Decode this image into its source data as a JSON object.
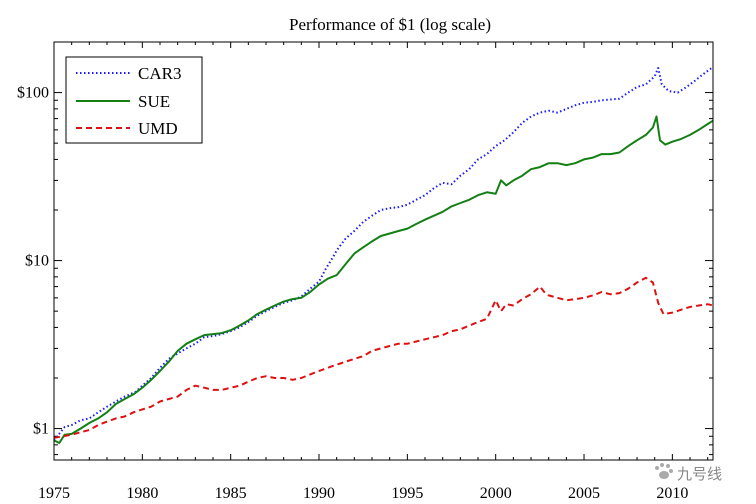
{
  "chart_data": {
    "type": "line",
    "title": "Performance of $1 (log scale)",
    "y_scale": "log",
    "xlim": [
      1975,
      2012.3
    ],
    "ylim": [
      0.65,
      200
    ],
    "grid": false,
    "legend_position": "top-left",
    "x_ticks": [
      1975,
      1980,
      1985,
      1990,
      1995,
      2000,
      2005,
      2010
    ],
    "x_tick_labels": [
      "1975",
      "1980",
      "1985",
      "1990",
      "1995",
      "2000",
      "2005",
      "2010"
    ],
    "y_ticks": [
      1,
      10,
      100
    ],
    "y_tick_labels": [
      "$1",
      "$10",
      "$100"
    ],
    "series": [
      {
        "name": "CAR3",
        "color": "#1a1aff",
        "style": "dotted",
        "points": [
          [
            1975.0,
            0.85
          ],
          [
            1975.6,
            1.02
          ],
          [
            1976.0,
            1.05
          ],
          [
            1976.5,
            1.12
          ],
          [
            1977.0,
            1.15
          ],
          [
            1977.5,
            1.25
          ],
          [
            1978.0,
            1.35
          ],
          [
            1978.5,
            1.45
          ],
          [
            1979.0,
            1.55
          ],
          [
            1979.6,
            1.65
          ],
          [
            1980.0,
            1.8
          ],
          [
            1980.5,
            2.0
          ],
          [
            1981.0,
            2.3
          ],
          [
            1981.5,
            2.6
          ],
          [
            1982.0,
            2.8
          ],
          [
            1982.5,
            3.0
          ],
          [
            1983.0,
            3.2
          ],
          [
            1983.5,
            3.5
          ],
          [
            1984.0,
            3.55
          ],
          [
            1984.5,
            3.65
          ],
          [
            1985.0,
            3.8
          ],
          [
            1985.5,
            4.0
          ],
          [
            1986.0,
            4.3
          ],
          [
            1986.5,
            4.7
          ],
          [
            1987.0,
            5.0
          ],
          [
            1987.5,
            5.3
          ],
          [
            1988.0,
            5.6
          ],
          [
            1988.5,
            5.8
          ],
          [
            1989.0,
            6.1
          ],
          [
            1989.5,
            6.8
          ],
          [
            1990.0,
            7.5
          ],
          [
            1990.4,
            9.0
          ],
          [
            1990.8,
            10.5
          ],
          [
            1991.0,
            11.5
          ],
          [
            1991.5,
            13.5
          ],
          [
            1992.0,
            15.0
          ],
          [
            1992.5,
            17.0
          ],
          [
            1993.0,
            18.5
          ],
          [
            1993.5,
            20.0
          ],
          [
            1994.0,
            20.5
          ],
          [
            1994.5,
            20.8
          ],
          [
            1995.0,
            21.5
          ],
          [
            1995.5,
            23.0
          ],
          [
            1996.0,
            24.5
          ],
          [
            1996.5,
            27.0
          ],
          [
            1997.0,
            29.0
          ],
          [
            1997.5,
            28.5
          ],
          [
            1998.0,
            32.0
          ],
          [
            1998.5,
            35.0
          ],
          [
            1999.0,
            40.0
          ],
          [
            1999.5,
            43.0
          ],
          [
            2000.0,
            48.0
          ],
          [
            2000.5,
            52.0
          ],
          [
            2001.0,
            58.0
          ],
          [
            2001.5,
            66.0
          ],
          [
            2002.0,
            72.0
          ],
          [
            2002.5,
            76.0
          ],
          [
            2003.0,
            78.0
          ],
          [
            2003.5,
            76.0
          ],
          [
            2004.0,
            80.0
          ],
          [
            2004.5,
            84.0
          ],
          [
            2005.0,
            87.0
          ],
          [
            2005.5,
            88.0
          ],
          [
            2006.0,
            90.0
          ],
          [
            2006.5,
            91.0
          ],
          [
            2007.0,
            92.0
          ],
          [
            2007.5,
            100.0
          ],
          [
            2008.0,
            108.0
          ],
          [
            2008.5,
            112.0
          ],
          [
            2009.0,
            125.0
          ],
          [
            2009.2,
            140.0
          ],
          [
            2009.4,
            112.0
          ],
          [
            2009.8,
            102.0
          ],
          [
            2010.3,
            100.0
          ],
          [
            2010.8,
            108.0
          ],
          [
            2011.3,
            118.0
          ],
          [
            2011.8,
            130.0
          ],
          [
            2012.3,
            142.0
          ]
        ]
      },
      {
        "name": "SUE",
        "color": "#138013",
        "style": "solid",
        "points": [
          [
            1975.0,
            0.85
          ],
          [
            1975.3,
            0.82
          ],
          [
            1975.6,
            0.92
          ],
          [
            1976.0,
            0.93
          ],
          [
            1976.5,
            1.0
          ],
          [
            1977.0,
            1.08
          ],
          [
            1977.5,
            1.15
          ],
          [
            1978.0,
            1.25
          ],
          [
            1978.5,
            1.4
          ],
          [
            1979.0,
            1.5
          ],
          [
            1979.5,
            1.6
          ],
          [
            1980.0,
            1.75
          ],
          [
            1980.5,
            1.95
          ],
          [
            1981.0,
            2.2
          ],
          [
            1981.5,
            2.5
          ],
          [
            1982.0,
            2.9
          ],
          [
            1982.5,
            3.2
          ],
          [
            1983.0,
            3.4
          ],
          [
            1983.5,
            3.6
          ],
          [
            1984.0,
            3.65
          ],
          [
            1984.5,
            3.7
          ],
          [
            1985.0,
            3.85
          ],
          [
            1985.5,
            4.1
          ],
          [
            1986.0,
            4.4
          ],
          [
            1986.5,
            4.8
          ],
          [
            1987.0,
            5.1
          ],
          [
            1987.5,
            5.4
          ],
          [
            1988.0,
            5.7
          ],
          [
            1988.5,
            5.9
          ],
          [
            1989.0,
            6.0
          ],
          [
            1989.5,
            6.5
          ],
          [
            1990.0,
            7.2
          ],
          [
            1990.5,
            7.8
          ],
          [
            1991.0,
            8.2
          ],
          [
            1991.5,
            9.5
          ],
          [
            1992.0,
            11.0
          ],
          [
            1992.5,
            12.0
          ],
          [
            1993.0,
            13.0
          ],
          [
            1993.5,
            14.0
          ],
          [
            1994.0,
            14.5
          ],
          [
            1994.5,
            15.0
          ],
          [
            1995.0,
            15.5
          ],
          [
            1995.5,
            16.5
          ],
          [
            1996.0,
            17.5
          ],
          [
            1996.5,
            18.5
          ],
          [
            1997.0,
            19.5
          ],
          [
            1997.5,
            21.0
          ],
          [
            1998.0,
            22.0
          ],
          [
            1998.5,
            23.0
          ],
          [
            1999.0,
            24.5
          ],
          [
            1999.5,
            25.5
          ],
          [
            2000.0,
            25.0
          ],
          [
            2000.3,
            30.0
          ],
          [
            2000.6,
            28.0
          ],
          [
            2001.0,
            30.0
          ],
          [
            2001.5,
            32.0
          ],
          [
            2002.0,
            35.0
          ],
          [
            2002.5,
            36.0
          ],
          [
            2003.0,
            38.0
          ],
          [
            2003.5,
            38.0
          ],
          [
            2004.0,
            37.0
          ],
          [
            2004.5,
            38.0
          ],
          [
            2005.0,
            40.0
          ],
          [
            2005.5,
            41.0
          ],
          [
            2006.0,
            43.0
          ],
          [
            2006.5,
            43.0
          ],
          [
            2007.0,
            44.0
          ],
          [
            2007.5,
            48.0
          ],
          [
            2008.0,
            52.0
          ],
          [
            2008.5,
            56.0
          ],
          [
            2008.9,
            62.0
          ],
          [
            2009.1,
            72.0
          ],
          [
            2009.3,
            52.0
          ],
          [
            2009.6,
            49.0
          ],
          [
            2010.0,
            51.0
          ],
          [
            2010.5,
            53.0
          ],
          [
            2011.0,
            56.0
          ],
          [
            2011.5,
            60.0
          ],
          [
            2012.0,
            65.0
          ],
          [
            2012.3,
            68.0
          ]
        ]
      },
      {
        "name": "UMD",
        "color": "#e01010",
        "style": "dashed",
        "points": [
          [
            1975.0,
            0.88
          ],
          [
            1975.5,
            0.9
          ],
          [
            1976.0,
            0.92
          ],
          [
            1976.5,
            0.95
          ],
          [
            1977.0,
            0.98
          ],
          [
            1977.5,
            1.05
          ],
          [
            1978.0,
            1.1
          ],
          [
            1978.5,
            1.15
          ],
          [
            1979.0,
            1.18
          ],
          [
            1979.5,
            1.25
          ],
          [
            1980.0,
            1.3
          ],
          [
            1980.5,
            1.35
          ],
          [
            1981.0,
            1.45
          ],
          [
            1981.5,
            1.5
          ],
          [
            1982.0,
            1.55
          ],
          [
            1982.5,
            1.7
          ],
          [
            1983.0,
            1.8
          ],
          [
            1983.5,
            1.75
          ],
          [
            1984.0,
            1.7
          ],
          [
            1984.5,
            1.7
          ],
          [
            1985.0,
            1.75
          ],
          [
            1985.5,
            1.8
          ],
          [
            1986.0,
            1.9
          ],
          [
            1986.5,
            2.0
          ],
          [
            1987.0,
            2.05
          ],
          [
            1987.5,
            2.0
          ],
          [
            1988.0,
            2.0
          ],
          [
            1988.5,
            1.95
          ],
          [
            1989.0,
            2.0
          ],
          [
            1989.5,
            2.1
          ],
          [
            1990.0,
            2.2
          ],
          [
            1990.5,
            2.3
          ],
          [
            1991.0,
            2.4
          ],
          [
            1991.5,
            2.5
          ],
          [
            1992.0,
            2.6
          ],
          [
            1992.5,
            2.7
          ],
          [
            1993.0,
            2.9
          ],
          [
            1993.5,
            3.0
          ],
          [
            1994.0,
            3.1
          ],
          [
            1994.5,
            3.2
          ],
          [
            1995.0,
            3.2
          ],
          [
            1995.5,
            3.3
          ],
          [
            1996.0,
            3.4
          ],
          [
            1996.5,
            3.5
          ],
          [
            1997.0,
            3.6
          ],
          [
            1997.5,
            3.8
          ],
          [
            1998.0,
            3.9
          ],
          [
            1998.5,
            4.1
          ],
          [
            1999.0,
            4.3
          ],
          [
            1999.5,
            4.5
          ],
          [
            2000.0,
            5.8
          ],
          [
            2000.3,
            5.0
          ],
          [
            2000.6,
            5.5
          ],
          [
            2001.0,
            5.4
          ],
          [
            2001.5,
            5.9
          ],
          [
            2002.0,
            6.3
          ],
          [
            2002.5,
            7.0
          ],
          [
            2002.8,
            6.4
          ],
          [
            2003.0,
            6.2
          ],
          [
            2003.5,
            6.0
          ],
          [
            2004.0,
            5.8
          ],
          [
            2004.5,
            5.9
          ],
          [
            2005.0,
            6.0
          ],
          [
            2005.5,
            6.2
          ],
          [
            2006.0,
            6.5
          ],
          [
            2006.5,
            6.3
          ],
          [
            2007.0,
            6.4
          ],
          [
            2007.5,
            6.8
          ],
          [
            2008.0,
            7.4
          ],
          [
            2008.5,
            7.9
          ],
          [
            2008.9,
            7.4
          ],
          [
            2009.2,
            5.6
          ],
          [
            2009.5,
            4.8
          ],
          [
            2010.0,
            4.9
          ],
          [
            2010.5,
            5.1
          ],
          [
            2011.0,
            5.3
          ],
          [
            2011.5,
            5.4
          ],
          [
            2012.0,
            5.5
          ],
          [
            2012.3,
            5.4
          ]
        ]
      }
    ]
  },
  "watermark": {
    "text": "九号线",
    "icon": "paw-icon"
  }
}
